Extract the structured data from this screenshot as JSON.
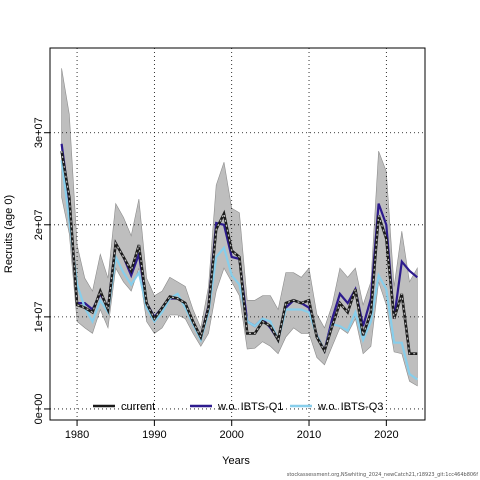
{
  "chart_data": {
    "type": "line",
    "xlabel": "Years",
    "ylabel": "Recruits (age 0)",
    "xlim": [
      1976.5,
      2025
    ],
    "ylim": [
      -1200000,
      39200000
    ],
    "x_ticks": [
      1980,
      1990,
      2000,
      2010,
      2020
    ],
    "y_ticks": [
      0,
      10000000,
      20000000,
      30000000
    ],
    "y_tick_labels": [
      "0e+00",
      "1e+07",
      "2e+07",
      "3e+07"
    ],
    "grid": true,
    "grid_style": "dotted",
    "legend_position": "bottom",
    "x": [
      1978,
      1979,
      1980,
      1981,
      1982,
      1983,
      1984,
      1985,
      1986,
      1987,
      1988,
      1989,
      1990,
      1991,
      1992,
      1993,
      1994,
      1995,
      1996,
      1997,
      1998,
      1999,
      2000,
      2001,
      2002,
      2003,
      2004,
      2005,
      2006,
      2007,
      2008,
      2009,
      2010,
      2011,
      2012,
      2013,
      2014,
      2015,
      2016,
      2017,
      2018,
      2019,
      2020,
      2021,
      2022,
      2023,
      2024
    ],
    "confidence_band": {
      "lower": [
        23000000,
        19000000,
        9500000,
        8800000,
        8200000,
        10800000,
        8800000,
        15300000,
        13800000,
        12800000,
        15300000,
        9500000,
        8200000,
        8800000,
        10200000,
        10200000,
        9800000,
        8200000,
        6800000,
        8200000,
        12800000,
        15300000,
        13800000,
        12300000,
        6500000,
        6600000,
        7300000,
        6800000,
        6000000,
        7800000,
        8800000,
        8200000,
        8200000,
        5600000,
        4800000,
        6800000,
        8800000,
        8200000,
        9800000,
        6000000,
        6800000,
        13800000,
        11300000,
        6200000,
        6000000,
        3000000,
        2500000
      ],
      "upper": [
        37000000,
        32000000,
        17800000,
        14200000,
        12800000,
        16800000,
        14200000,
        22300000,
        20800000,
        18800000,
        22800000,
        14200000,
        12300000,
        12800000,
        14300000,
        13800000,
        13300000,
        10800000,
        8800000,
        13300000,
        24300000,
        26800000,
        21800000,
        21300000,
        11800000,
        11800000,
        12300000,
        12300000,
        10800000,
        14800000,
        14800000,
        14300000,
        15300000,
        10300000,
        8800000,
        11300000,
        15300000,
        14300000,
        15300000,
        11300000,
        13800000,
        28000000,
        25800000,
        13300000,
        19300000,
        13800000,
        15300000
      ]
    },
    "series": [
      {
        "name": "current",
        "color": "#1a1a1a",
        "dashed": true,
        "values": [
          28000000,
          23000000,
          11300000,
          11000000,
          10500000,
          12800000,
          10800000,
          18000000,
          16500000,
          15000000,
          17800000,
          11500000,
          9800000,
          11000000,
          12200000,
          12000000,
          11500000,
          9500000,
          7800000,
          11000000,
          19500000,
          21200000,
          17200000,
          16500000,
          8200000,
          8200000,
          9500000,
          9000000,
          7500000,
          11500000,
          11800000,
          11500000,
          11800000,
          7800000,
          6300000,
          9000000,
          11500000,
          10500000,
          13000000,
          8000000,
          10500000,
          21000000,
          18500000,
          9800000,
          12500000,
          6000000,
          6000000
        ]
      },
      {
        "name": "w.o. IBTS-Q1",
        "color": "#2d1b8e",
        "dashed": false,
        "values": [
          28800000,
          22500000,
          11500000,
          11500000,
          10800000,
          12500000,
          11000000,
          18000000,
          16500000,
          14500000,
          16800000,
          11500000,
          10000000,
          11000000,
          12000000,
          12000000,
          11500000,
          9200000,
          7800000,
          11200000,
          20200000,
          20000000,
          16500000,
          16300000,
          9500000,
          9000000,
          9800000,
          8800000,
          7500000,
          11000000,
          11800000,
          11500000,
          11000000,
          8000000,
          6300000,
          9800000,
          12500000,
          11500000,
          13000000,
          9000000,
          12000000,
          22300000,
          20000000,
          9800000,
          16000000,
          15000000,
          14300000
        ]
      },
      {
        "name": "w.o. IBTS-Q3",
        "color": "#87ceeb",
        "dashed": false,
        "values": [
          27000000,
          20500000,
          13500000,
          11000000,
          9500000,
          11800000,
          10500000,
          16500000,
          14800000,
          13500000,
          14800000,
          11000000,
          9500000,
          10500000,
          12000000,
          12500000,
          11000000,
          9200000,
          7500000,
          10500000,
          16500000,
          17500000,
          14500000,
          13500000,
          9500000,
          9000000,
          9800000,
          9500000,
          7500000,
          10800000,
          10800000,
          10800000,
          10500000,
          8000000,
          6300000,
          9200000,
          9000000,
          8500000,
          10500000,
          7500000,
          9500000,
          14500000,
          13000000,
          7200000,
          7200000,
          3800000,
          3200000
        ]
      }
    ]
  },
  "footer": "stockassessment.org,NSwhiting_2024_newCatch21,r18923_git:1cc464b806f"
}
